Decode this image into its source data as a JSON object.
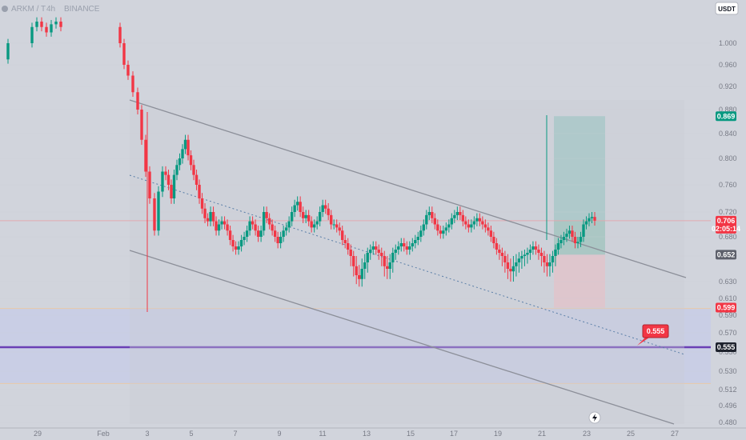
{
  "header": {
    "symbol_line": "ARKM / T",
    "interval": "4h",
    "exchange": "BINANCE"
  },
  "currency_button": "USDT",
  "colors": {
    "background": "#d1d4dc",
    "up": "#089981",
    "down": "#f23645",
    "channel": "#8c8f99",
    "support_line": "#6a3fb5",
    "zone": "#c8cde6",
    "target_fill": "#a9c8c8",
    "stop_fill": "#e0c4cb"
  },
  "chart_data": {
    "type": "candlestick",
    "symbol": "ARKM / T",
    "exchange": "BINANCE",
    "timeframe": "4h",
    "x_ticks": [
      "29",
      "Feb",
      "3",
      "5",
      "7",
      "9",
      "11",
      "13",
      "15",
      "17",
      "19",
      "21",
      "23",
      "25",
      "27"
    ],
    "y_ticks": [
      "1.000",
      "0.960",
      "0.920",
      "0.880",
      "0.840",
      "0.800",
      "0.760",
      "0.720",
      "0.680",
      "0.650",
      "0.630",
      "0.610",
      "0.590",
      "0.570",
      "0.550",
      "0.530",
      "0.512",
      "0.496",
      "0.480"
    ],
    "ylim": [
      0.48,
      1.04
    ],
    "price_tags": [
      {
        "label": "0.869",
        "value": 0.869,
        "color": "#089981"
      },
      {
        "label": "0.706",
        "value": 0.706,
        "color": "#f23645",
        "countdown": "02:05:14"
      },
      {
        "label": "0.652",
        "value": 0.652,
        "color": "#5d606b"
      },
      {
        "label": "0.599",
        "value": 0.599,
        "color": "#f23645"
      },
      {
        "label": "0.555",
        "value": 0.555,
        "color": "#1e222d"
      }
    ],
    "annotations": [
      {
        "label": "0.555",
        "value": 0.555
      }
    ],
    "position": {
      "entry": 0.706,
      "target": 0.869,
      "stop": 0.652
    },
    "support_zone": [
      0.518,
      0.598
    ],
    "support_line": 0.555,
    "candle_closes": [
      0.775,
      0.76,
      0.74,
      0.775,
      0.79,
      0.8,
      0.815,
      0.83,
      0.805,
      0.79,
      0.775,
      0.76,
      0.74,
      0.725,
      0.71,
      0.705,
      0.72,
      0.705,
      0.69,
      0.7,
      0.705,
      0.7,
      0.69,
      0.675,
      0.665,
      0.66,
      0.665,
      0.675,
      0.68,
      0.69,
      0.705,
      0.7,
      0.69,
      0.68,
      0.69,
      0.72,
      0.71,
      0.7,
      0.69,
      0.68,
      0.67,
      0.68,
      0.69,
      0.695,
      0.705,
      0.72,
      0.73,
      0.735,
      0.72,
      0.71,
      0.715,
      0.705,
      0.695,
      0.7,
      0.705,
      0.72,
      0.73,
      0.725,
      0.715,
      0.7,
      0.7,
      0.695,
      0.69,
      0.675,
      0.67,
      0.66,
      0.65,
      0.642,
      0.635,
      0.632,
      0.64,
      0.645,
      0.655,
      0.66,
      0.665,
      0.66,
      0.655,
      0.65,
      0.642,
      0.64,
      0.645,
      0.655,
      0.66,
      0.665,
      0.67,
      0.665,
      0.66,
      0.665,
      0.67,
      0.675,
      0.68,
      0.69,
      0.7,
      0.715,
      0.72,
      0.71,
      0.7,
      0.69,
      0.685,
      0.69,
      0.695,
      0.7,
      0.71,
      0.715,
      0.72,
      0.715,
      0.705,
      0.7,
      0.695,
      0.7,
      0.705,
      0.71,
      0.705,
      0.7,
      0.695,
      0.69,
      0.68,
      0.67,
      0.66,
      0.655,
      0.65,
      0.645,
      0.64,
      0.638,
      0.642,
      0.645,
      0.648,
      0.65,
      0.652,
      0.655,
      0.66,
      0.665,
      0.66,
      0.655,
      0.65,
      0.645,
      0.642,
      0.645,
      0.65,
      0.66,
      0.67,
      0.675,
      0.68,
      0.685,
      0.69,
      0.68,
      0.67,
      0.672,
      0.68,
      0.7,
      0.705,
      0.71,
      0.712,
      0.706
    ]
  }
}
